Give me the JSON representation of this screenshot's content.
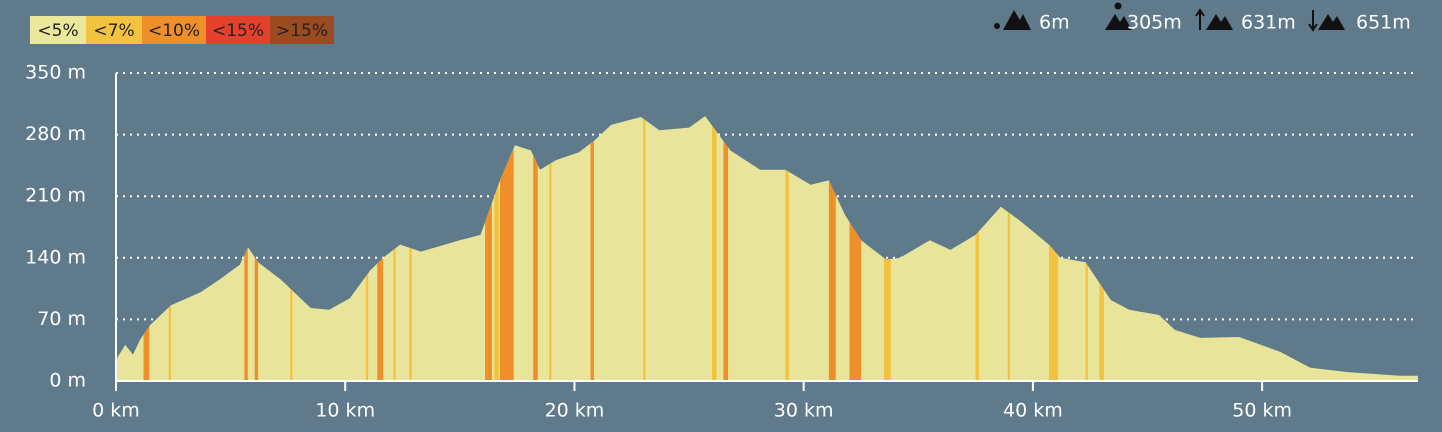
{
  "chart_data": {
    "type": "area",
    "legend": [
      {
        "label": "<5%",
        "color": "#ebe79b"
      },
      {
        "label": "<7%",
        "color": "#f3c340"
      },
      {
        "label": "<10%",
        "color": "#ef8f2a"
      },
      {
        "label": "<15%",
        "color": "#e5402b"
      },
      {
        "label": ">15%",
        "color": "#9b4b1f"
      }
    ],
    "stats": [
      "6m",
      "305m",
      "631m",
      "651m"
    ],
    "x": [
      0,
      0.4,
      0.74,
      1.05,
      1.5,
      2.4,
      3.7,
      4.5,
      5.4,
      5.76,
      6.2,
      7.2,
      8.5,
      9.3,
      10.2,
      11.1,
      11.7,
      12.4,
      13.3,
      15.0,
      15.9,
      16.75,
      17.4,
      18.1,
      18.5,
      19.2,
      20.2,
      20.9,
      21.6,
      22.9,
      23.7,
      25.0,
      25.7,
      26.8,
      28.1,
      29.2,
      30.3,
      31.1,
      31.8,
      32.5,
      33.6,
      34.2,
      35.5,
      36.4,
      37.5,
      38.6,
      39.4,
      40.7,
      41.2,
      42.3,
      43.4,
      44.2,
      45.5,
      46.2,
      47.3,
      49.0,
      50.8,
      52.1,
      53.8,
      56.0,
      56.8
    ],
    "series": [
      {
        "color": "#e8e59a",
        "values": [
          24,
          41,
          30,
          47,
          64,
          86,
          101,
          115,
          132,
          152,
          135,
          115,
          83,
          81,
          94,
          126,
          141,
          155,
          147,
          160,
          166,
          228,
          268,
          262,
          240,
          251,
          260,
          274,
          291,
          300,
          285,
          288,
          301,
          262,
          240,
          240,
          223,
          228,
          189,
          160,
          138,
          140,
          160,
          149,
          166,
          198,
          183,
          155,
          140,
          135,
          92,
          81,
          75,
          58,
          49,
          50,
          33,
          15,
          10,
          6,
          6
        ]
      }
    ],
    "grade_sections": [
      {
        "start": 1.2,
        "end": 1.45,
        "class": 2
      },
      {
        "start": 2.3,
        "end": 2.4,
        "class": 1
      },
      {
        "start": 5.6,
        "end": 5.75,
        "class": 2
      },
      {
        "start": 6.05,
        "end": 6.2,
        "class": 2
      },
      {
        "start": 7.6,
        "end": 7.7,
        "class": 1
      },
      {
        "start": 10.9,
        "end": 11.0,
        "class": 1
      },
      {
        "start": 11.4,
        "end": 11.65,
        "class": 2
      },
      {
        "start": 12.1,
        "end": 12.2,
        "class": 1
      },
      {
        "start": 12.8,
        "end": 12.9,
        "class": 1
      },
      {
        "start": 16.1,
        "end": 16.4,
        "class": 2
      },
      {
        "start": 16.5,
        "end": 16.7,
        "class": 1
      },
      {
        "start": 16.75,
        "end": 17.35,
        "class": 2
      },
      {
        "start": 18.2,
        "end": 18.4,
        "class": 2
      },
      {
        "start": 18.9,
        "end": 19.0,
        "class": 1
      },
      {
        "start": 20.7,
        "end": 20.85,
        "class": 2
      },
      {
        "start": 23.0,
        "end": 23.1,
        "class": 1
      },
      {
        "start": 26.0,
        "end": 26.2,
        "class": 1
      },
      {
        "start": 26.5,
        "end": 26.7,
        "class": 2
      },
      {
        "start": 29.2,
        "end": 29.35,
        "class": 1
      },
      {
        "start": 31.1,
        "end": 31.4,
        "class": 2
      },
      {
        "start": 32.0,
        "end": 32.5,
        "class": 2
      },
      {
        "start": 33.5,
        "end": 33.8,
        "class": 1
      },
      {
        "start": 37.5,
        "end": 37.65,
        "class": 1
      },
      {
        "start": 38.9,
        "end": 39.0,
        "class": 1
      },
      {
        "start": 40.7,
        "end": 41.1,
        "class": 1
      },
      {
        "start": 42.3,
        "end": 42.4,
        "class": 1
      },
      {
        "start": 42.9,
        "end": 43.1,
        "class": 1
      }
    ],
    "xlim": [
      0,
      56.8
    ],
    "ylim": [
      0,
      350
    ],
    "xticks": [
      {
        "value": 0,
        "label": "0 km"
      },
      {
        "value": 10,
        "label": "10 km"
      },
      {
        "value": 20,
        "label": "20 km"
      },
      {
        "value": 30,
        "label": "30 km"
      },
      {
        "value": 40,
        "label": "40 km"
      },
      {
        "value": 50,
        "label": "50 km"
      }
    ],
    "yticks": [
      {
        "value": 0,
        "label": "0 m"
      },
      {
        "value": 70,
        "label": "70 m"
      },
      {
        "value": 140,
        "label": "140 m"
      },
      {
        "value": 210,
        "label": "210 m"
      },
      {
        "value": 280,
        "label": "280 m"
      },
      {
        "value": 350,
        "label": "350 m"
      }
    ],
    "grid": true
  }
}
